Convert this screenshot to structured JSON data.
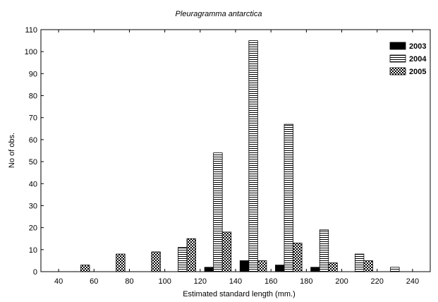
{
  "chart_data": {
    "type": "bar",
    "title": "Pleuragramma antarctica",
    "xlabel": "Estimated standard length (mm.)",
    "ylabel": "No of obs.",
    "xlim": [
      30,
      250
    ],
    "ylim": [
      0,
      110
    ],
    "x_ticks": [
      40,
      60,
      80,
      100,
      120,
      140,
      160,
      180,
      200,
      220,
      240
    ],
    "y_ticks": [
      0,
      10,
      20,
      30,
      40,
      50,
      60,
      70,
      80,
      90,
      100,
      110
    ],
    "bin_centers": [
      50,
      70,
      90,
      110,
      130,
      150,
      170,
      190,
      210,
      230
    ],
    "legend_position": "top-right",
    "grid": false,
    "series": [
      {
        "name": "2003",
        "pattern": "solid",
        "values": [
          0,
          0,
          0,
          0,
          2,
          5,
          3,
          2,
          0,
          0
        ]
      },
      {
        "name": "2004",
        "pattern": "horizontal-lines",
        "values": [
          0,
          0,
          0,
          11,
          54,
          105,
          67,
          19,
          8,
          2
        ]
      },
      {
        "name": "2005",
        "pattern": "checkered",
        "values": [
          3,
          8,
          9,
          15,
          18,
          5,
          13,
          4,
          5,
          0
        ]
      }
    ]
  }
}
